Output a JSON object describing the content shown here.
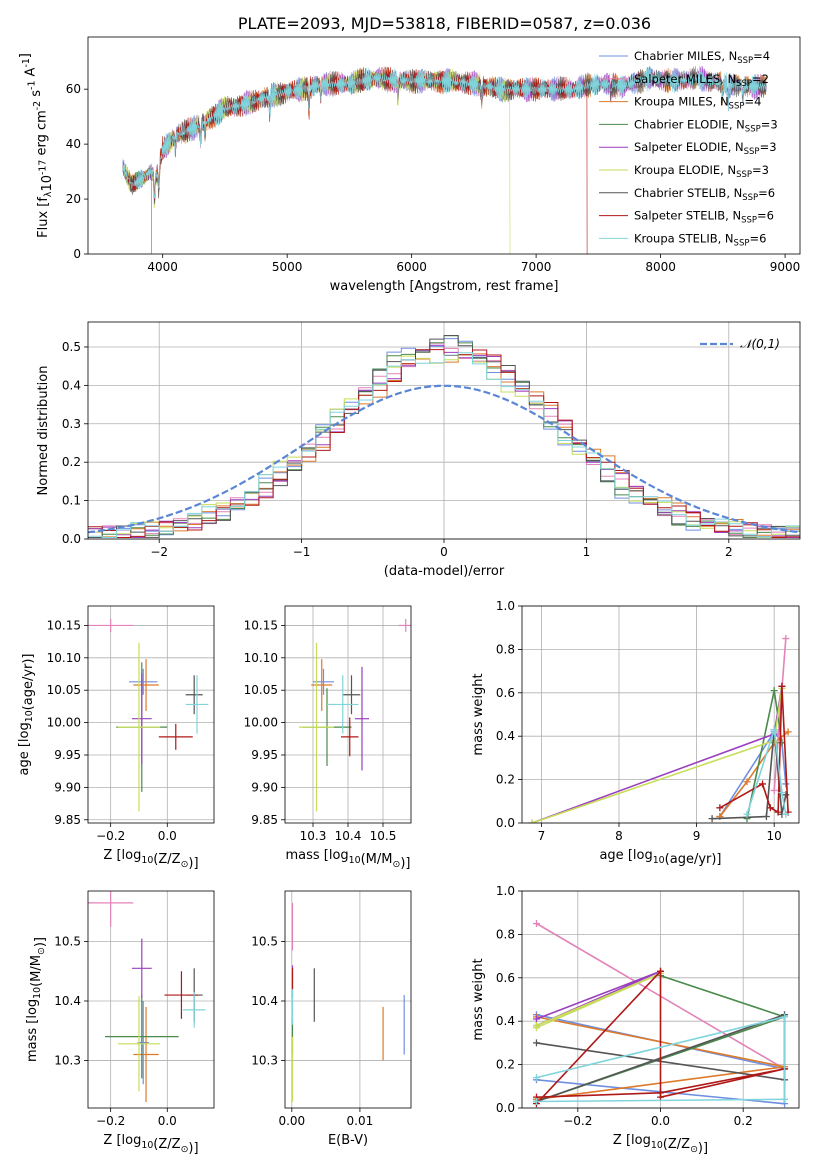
{
  "figure": {
    "title": "PLATE=2093, MJD=53818, FIBERID=0587, z=0.036"
  },
  "series_styles": [
    {
      "name": "Chabrier MILES, N$_{SSP}$=4",
      "color": "#6f8fe0"
    },
    {
      "name": "Salpeter MILES, N$_{SSP}$=2",
      "color": "#e383b7"
    },
    {
      "name": "Kroupa MILES, N$_{SSP}$=4",
      "color": "#dd7a2a"
    },
    {
      "name": "Chabrier ELODIE, N$_{SSP}$=3",
      "color": "#4b8a4b"
    },
    {
      "name": "Salpeter ELODIE, N$_{SSP}$=3",
      "color": "#9b3fc0"
    },
    {
      "name": "Kroupa ELODIE, N$_{SSP}$=3",
      "color": "#c7dd5a"
    },
    {
      "name": "Chabrier STELIB, N$_{SSP}$=6",
      "color": "#555555"
    },
    {
      "name": "Salpeter STELIB, N$_{SSP}$=6",
      "color": "#b01818"
    },
    {
      "name": "Kroupa STELIB, N$_{SSP}$=6",
      "color": "#80d4dc"
    }
  ],
  "legend_labels": [
    {
      "pre": "Chabrier MILES, N",
      "sub": "SSP",
      "post": "=4"
    },
    {
      "pre": "Salpeter MILES, N",
      "sub": "SSP",
      "post": "=2"
    },
    {
      "pre": "Kroupa MILES, N",
      "sub": "SSP",
      "post": "=4"
    },
    {
      "pre": "Chabrier ELODIE, N",
      "sub": "SSP",
      "post": "=3"
    },
    {
      "pre": "Salpeter ELODIE, N",
      "sub": "SSP",
      "post": "=3"
    },
    {
      "pre": "Kroupa ELODIE, N",
      "sub": "SSP",
      "post": "=3"
    },
    {
      "pre": "Chabrier STELIB, N",
      "sub": "SSP",
      "post": "=6"
    },
    {
      "pre": "Salpeter STELIB, N",
      "sub": "SSP",
      "post": "=6"
    },
    {
      "pre": "Kroupa STELIB, N",
      "sub": "SSP",
      "post": "=6"
    }
  ],
  "chart_data": [
    {
      "id": "spectrum",
      "type": "line",
      "xlabel": "wavelength [Angstrom, rest frame]",
      "ylabel": "Flux [f$_\\lambda$10$^{-17}$ erg cm$^{-2}$ s$^{-1}$ A$^{-1}$]",
      "xlim": [
        3400,
        9120
      ],
      "ylim": [
        0,
        79
      ],
      "xticks": [
        4000,
        5000,
        6000,
        7000,
        8000,
        9000
      ],
      "yticks": [
        0,
        20,
        40,
        60
      ],
      "legend": "upper-right",
      "grid": false,
      "continuum": [
        [
          3680,
          32
        ],
        [
          3750,
          25
        ],
        [
          3850,
          28
        ],
        [
          3900,
          30
        ],
        [
          3950,
          28
        ],
        [
          4000,
          38
        ],
        [
          4100,
          43
        ],
        [
          4200,
          45
        ],
        [
          4300,
          47
        ],
        [
          4500,
          53
        ],
        [
          4700,
          55
        ],
        [
          4900,
          58
        ],
        [
          5100,
          60
        ],
        [
          5300,
          62
        ],
        [
          5500,
          62
        ],
        [
          5700,
          64
        ],
        [
          5900,
          63
        ],
        [
          6100,
          63
        ],
        [
          6300,
          63
        ],
        [
          6500,
          62
        ],
        [
          6700,
          60
        ],
        [
          6900,
          60
        ],
        [
          7100,
          60
        ],
        [
          7300,
          60
        ],
        [
          7500,
          62
        ],
        [
          7700,
          61
        ],
        [
          7900,
          64
        ],
        [
          8100,
          63
        ],
        [
          8300,
          64
        ],
        [
          8500,
          62
        ],
        [
          8700,
          61
        ],
        [
          8850,
          61
        ]
      ],
      "truncated_models": [
        {
          "series": 5,
          "end_x": 6790
        },
        {
          "series": 7,
          "end_x": 7410
        },
        {
          "series": 3,
          "end_x": 3910
        }
      ]
    },
    {
      "id": "residuals",
      "type": "histogram",
      "xlabel": "(data-model)/error",
      "ylabel": "Normed distribution",
      "xlim": [
        -2.5,
        2.5
      ],
      "ylim": [
        0,
        0.565
      ],
      "xticks": [
        -2,
        -1,
        0,
        1,
        2
      ],
      "yticks": [
        0.0,
        0.1,
        0.2,
        0.3,
        0.4,
        0.5
      ],
      "grid": true,
      "legend": "upper-right",
      "gaussian_label": "$\\mathcal{N}(0,1)$",
      "bin_width": 0.1
    },
    {
      "id": "age_vs_Z",
      "type": "scatter",
      "xlabel": "Z [log$_{10}$(Z/Z$_\\odot$)]",
      "ylabel": "age  [log$_{10}$(age/yr)]",
      "xlim": [
        -0.28,
        0.165
      ],
      "ylim": [
        9.845,
        10.18
      ],
      "xticks": [
        -0.2,
        0.0
      ],
      "yticks": [
        9.85,
        9.9,
        9.95,
        10.0,
        10.05,
        10.1,
        10.15
      ],
      "grid": true,
      "points": [
        {
          "s": 0,
          "x": -0.085,
          "y": 10.063,
          "xe": 0.05,
          "ye": 0.02
        },
        {
          "s": 1,
          "x": -0.2,
          "y": 10.15,
          "xe": 0.08,
          "ye": 0.01
        },
        {
          "s": 2,
          "x": -0.075,
          "y": 10.058,
          "xe": 0.045,
          "ye": 0.04
        },
        {
          "s": 3,
          "x": -0.09,
          "y": 9.993,
          "xe": 0.09,
          "ye": 0.1
        },
        {
          "s": 4,
          "x": -0.09,
          "y": 10.006,
          "xe": 0.035,
          "ye": 0.07
        },
        {
          "s": 5,
          "x": -0.1,
          "y": 9.993,
          "xe": 0.075,
          "ye": 0.13
        },
        {
          "s": 6,
          "x": 0.095,
          "y": 10.043,
          "xe": 0.03,
          "ye": 0.03
        },
        {
          "s": 7,
          "x": 0.03,
          "y": 9.978,
          "xe": 0.06,
          "ye": 0.02
        },
        {
          "s": 8,
          "x": 0.105,
          "y": 10.028,
          "xe": 0.04,
          "ye": 0.045
        }
      ]
    },
    {
      "id": "age_vs_mass",
      "type": "scatter",
      "xlabel": "mass [log$_{10}$(M/M$_\\odot$)]",
      "ylabel": "",
      "xlim": [
        10.22,
        10.58
      ],
      "ylim": [
        9.845,
        10.18
      ],
      "xticks": [
        10.3,
        10.4,
        10.5
      ],
      "yticks": [
        9.85,
        9.9,
        9.95,
        10.0,
        10.05,
        10.1,
        10.15
      ],
      "grid": true,
      "points": [
        {
          "s": 0,
          "x": 10.33,
          "y": 10.063,
          "xe": 0.03,
          "ye": 0.02
        },
        {
          "s": 1,
          "x": 10.565,
          "y": 10.15,
          "xe": 0.02,
          "ye": 0.01
        },
        {
          "s": 2,
          "x": 10.325,
          "y": 10.058,
          "xe": 0.03,
          "ye": 0.04
        },
        {
          "s": 3,
          "x": 10.34,
          "y": 9.993,
          "xe": 0.07,
          "ye": 0.06
        },
        {
          "s": 4,
          "x": 10.44,
          "y": 10.006,
          "xe": 0.02,
          "ye": 0.08
        },
        {
          "s": 5,
          "x": 10.31,
          "y": 9.993,
          "xe": 0.05,
          "ye": 0.13
        },
        {
          "s": 6,
          "x": 10.41,
          "y": 10.043,
          "xe": 0.025,
          "ye": 0.03
        },
        {
          "s": 7,
          "x": 10.405,
          "y": 9.978,
          "xe": 0.025,
          "ye": 0.03
        },
        {
          "s": 8,
          "x": 10.385,
          "y": 10.028,
          "xe": 0.045,
          "ye": 0.045
        }
      ]
    },
    {
      "id": "weight_vs_age",
      "type": "line",
      "xlabel": "age  [log$_{10}$(age/yr)]",
      "ylabel": "mass weight",
      "xlim": [
        6.75,
        10.32
      ],
      "ylim": [
        0.0,
        1.0
      ],
      "xticks": [
        7,
        8,
        9,
        10
      ],
      "yticks": [
        0.0,
        0.2,
        0.4,
        0.6,
        0.8,
        1.0
      ],
      "grid": true,
      "series": [
        {
          "s": 0,
          "points": [
            [
              9.3,
              0.03
            ],
            [
              10.0,
              0.42
            ],
            [
              10.1,
              0.37
            ],
            [
              10.15,
              0.18
            ]
          ]
        },
        {
          "s": 1,
          "points": [
            [
              10.0,
              0.15
            ],
            [
              10.15,
              0.85
            ]
          ]
        },
        {
          "s": 2,
          "points": [
            [
              9.3,
              0.03
            ],
            [
              9.65,
              0.19
            ],
            [
              10.0,
              0.37
            ],
            [
              10.18,
              0.42
            ]
          ]
        },
        {
          "s": 3,
          "points": [
            [
              9.65,
              0.02
            ],
            [
              10.0,
              0.61
            ],
            [
              10.1,
              0.37
            ]
          ]
        },
        {
          "s": 4,
          "points": [
            [
              6.88,
              0.0
            ],
            [
              10.0,
              0.41
            ],
            [
              10.1,
              0.63
            ]
          ]
        },
        {
          "s": 5,
          "points": [
            [
              6.88,
              0.0
            ],
            [
              10.0,
              0.38
            ],
            [
              10.1,
              0.62
            ]
          ]
        },
        {
          "s": 6,
          "points": [
            [
              9.2,
              0.02
            ],
            [
              9.9,
              0.03
            ],
            [
              10.0,
              0.43
            ],
            [
              10.1,
              0.04
            ],
            [
              10.15,
              0.13
            ]
          ]
        },
        {
          "s": 7,
          "points": [
            [
              9.3,
              0.07
            ],
            [
              9.85,
              0.18
            ],
            [
              9.95,
              0.07
            ],
            [
              10.05,
              0.05
            ],
            [
              10.1,
              0.63
            ],
            [
              10.18,
              0.05
            ]
          ]
        },
        {
          "s": 8,
          "points": [
            [
              9.65,
              0.04
            ],
            [
              10.0,
              0.43
            ],
            [
              10.1,
              0.14
            ],
            [
              10.15,
              0.04
            ]
          ]
        }
      ]
    },
    {
      "id": "mass_vs_Z",
      "type": "scatter",
      "xlabel": "Z [log$_{10}$(Z/Z$_\\odot$)]",
      "ylabel": "mass [log$_{10}$(M/M$_\\odot$)]",
      "xlim": [
        -0.28,
        0.165
      ],
      "ylim": [
        10.22,
        10.585
      ],
      "xticks": [
        -0.2,
        0.0
      ],
      "yticks": [
        10.3,
        10.4,
        10.5
      ],
      "grid": true,
      "points": [
        {
          "s": 0,
          "x": -0.085,
          "y": 10.33,
          "xe": 0.02,
          "ye": 0.07
        },
        {
          "s": 1,
          "x": -0.2,
          "y": 10.565,
          "xe": 0.08,
          "ye": 0.04
        },
        {
          "s": 2,
          "x": -0.075,
          "y": 10.31,
          "xe": 0.045,
          "ye": 0.08
        },
        {
          "s": 3,
          "x": -0.09,
          "y": 10.34,
          "xe": 0.13,
          "ye": 0.07
        },
        {
          "s": 4,
          "x": -0.09,
          "y": 10.455,
          "xe": 0.035,
          "ye": 0.05
        },
        {
          "s": 5,
          "x": -0.1,
          "y": 10.328,
          "xe": 0.075,
          "ye": 0.08
        },
        {
          "s": 6,
          "x": 0.095,
          "y": 10.41,
          "xe": 0.03,
          "ye": 0.045
        },
        {
          "s": 7,
          "x": 0.05,
          "y": 10.41,
          "xe": 0.06,
          "ye": 0.04
        },
        {
          "s": 8,
          "x": 0.095,
          "y": 10.385,
          "xe": 0.04,
          "ye": 0.03
        }
      ]
    },
    {
      "id": "mass_vs_ebv",
      "type": "scatter",
      "xlabel": "E(B-V)",
      "ylabel": "",
      "xlim": [
        -0.001,
        0.0175
      ],
      "ylim": [
        10.22,
        10.585
      ],
      "xticks": [
        0.0,
        0.01
      ],
      "yticks": [
        10.3,
        10.4,
        10.5
      ],
      "grid": true,
      "points": [
        {
          "s": 0,
          "x": 0.0165,
          "y": 10.36,
          "xe": 0.0,
          "ye": 0.05
        },
        {
          "s": 1,
          "x": 0.0001,
          "y": 10.525,
          "xe": 0.0,
          "ye": 0.04
        },
        {
          "s": 2,
          "x": 0.0134,
          "y": 10.345,
          "xe": 0.0,
          "ye": 0.045
        },
        {
          "s": 3,
          "x": 0.0001,
          "y": 10.34,
          "xe": 0.0,
          "ye": 0.03
        },
        {
          "s": 4,
          "x": 0.0001,
          "y": 10.44,
          "xe": 0.0,
          "ye": 0.02
        },
        {
          "s": 5,
          "x": 0.0001,
          "y": 10.285,
          "xe": 0.0,
          "ye": 0.055
        },
        {
          "s": 6,
          "x": 0.0033,
          "y": 10.41,
          "xe": 0.0,
          "ye": 0.045
        },
        {
          "s": 7,
          "x": 0.0001,
          "y": 10.43,
          "xe": 0.0,
          "ye": 0.025
        },
        {
          "s": 8,
          "x": 0.0001,
          "y": 10.39,
          "xe": 0.0,
          "ye": 0.03
        }
      ]
    },
    {
      "id": "weight_vs_Z",
      "type": "line",
      "xlabel": "Z [log$_{10}$(Z/Z$_\\odot$)]",
      "ylabel": "mass weight",
      "xlim": [
        -0.335,
        0.335
      ],
      "ylim": [
        0.0,
        1.0
      ],
      "xticks": [
        -0.2,
        0.0,
        0.2
      ],
      "yticks": [
        0.0,
        0.2,
        0.4,
        0.6,
        0.8,
        1.0
      ],
      "grid": true,
      "series": [
        {
          "s": 0,
          "points": [
            [
              -0.3,
              0.43
            ],
            [
              0.3,
              0.18
            ],
            [
              0.3,
              0.02
            ],
            [
              -0.3,
              0.13
            ]
          ]
        },
        {
          "s": 1,
          "points": [
            [
              -0.3,
              0.85
            ],
            [
              0.3,
              0.18
            ]
          ]
        },
        {
          "s": 2,
          "points": [
            [
              -0.3,
              0.42
            ],
            [
              0.3,
              0.19
            ],
            [
              -0.3,
              0.04
            ]
          ]
        },
        {
          "s": 3,
          "points": [
            [
              -0.3,
              0.03
            ],
            [
              0.3,
              0.42
            ],
            [
              0.0,
              0.61
            ]
          ]
        },
        {
          "s": 4,
          "points": [
            [
              -0.3,
              0.41
            ],
            [
              0.0,
              0.63
            ],
            [
              -0.3,
              0.38
            ]
          ]
        },
        {
          "s": 5,
          "points": [
            [
              -0.3,
              0.38
            ],
            [
              0.0,
              0.62
            ],
            [
              -0.3,
              0.37
            ]
          ]
        },
        {
          "s": 6,
          "points": [
            [
              -0.3,
              0.03
            ],
            [
              0.3,
              0.43
            ],
            [
              0.3,
              0.13
            ],
            [
              -0.3,
              0.3
            ]
          ]
        },
        {
          "s": 7,
          "points": [
            [
              -0.3,
              0.02
            ],
            [
              0.0,
              0.63
            ],
            [
              0.0,
              0.05
            ],
            [
              0.3,
              0.18
            ],
            [
              0.0,
              0.07
            ],
            [
              -0.3,
              0.05
            ]
          ]
        },
        {
          "s": 8,
          "points": [
            [
              -0.3,
              0.14
            ],
            [
              0.3,
              0.42
            ],
            [
              0.3,
              0.04
            ],
            [
              -0.3,
              0.03
            ]
          ]
        }
      ]
    }
  ]
}
